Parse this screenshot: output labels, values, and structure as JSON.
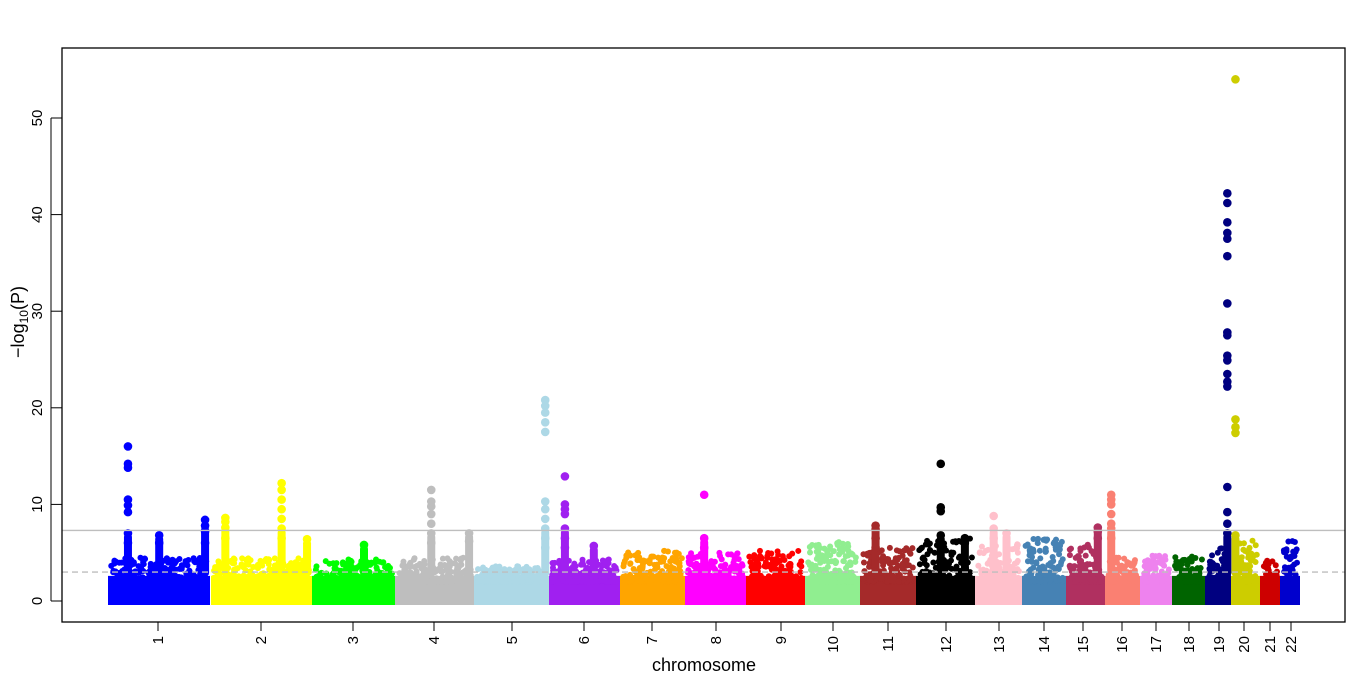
{
  "chart_data": {
    "type": "scatter",
    "title": "",
    "xlabel": "chromosome",
    "ylabel_parts": {
      "prefix": "−log",
      "sub": "10",
      "suffix": "(P)"
    },
    "ylim": [
      0,
      56
    ],
    "yticks": [
      "0",
      "10",
      "20",
      "30",
      "40",
      "50"
    ],
    "grid": false,
    "legend": "none",
    "threshold_lines": [
      {
        "value": 7.3,
        "style": "solid",
        "color": "#bebebe"
      },
      {
        "value": 3,
        "style": "dashed",
        "color": "#bebebe"
      }
    ],
    "chromosomes": [
      {
        "label": "1",
        "color": "#0000ff",
        "length_mb": 249,
        "background_max": 4.5
      },
      {
        "label": "2",
        "color": "#ffff00",
        "length_mb": 243,
        "background_max": 4.5
      },
      {
        "label": "3",
        "color": "#00ff00",
        "length_mb": 198,
        "background_max": 4.3
      },
      {
        "label": "4",
        "color": "#bebebe",
        "length_mb": 191,
        "background_max": 4.6
      },
      {
        "label": "5",
        "color": "#add8e6",
        "length_mb": 181,
        "background_max": 3.6
      },
      {
        "label": "6",
        "color": "#a020f0",
        "length_mb": 171,
        "background_max": 4.3
      },
      {
        "label": "7",
        "color": "#ffa500",
        "length_mb": 159,
        "background_max": 5.2
      },
      {
        "label": "8",
        "color": "#ff00ff",
        "length_mb": 146,
        "background_max": 5.0
      },
      {
        "label": "9",
        "color": "#ff0000",
        "length_mb": 141,
        "background_max": 5.2
      },
      {
        "label": "10",
        "color": "#90ee90",
        "length_mb": 136,
        "background_max": 6.2
      },
      {
        "label": "11",
        "color": "#a52a2a",
        "length_mb": 135,
        "background_max": 5.6
      },
      {
        "label": "12",
        "color": "#000000",
        "length_mb": 134,
        "background_max": 6.5
      },
      {
        "label": "13",
        "color": "#ffc0cb",
        "length_mb": 115,
        "background_max": 6.0
      },
      {
        "label": "14",
        "color": "#4682b4",
        "length_mb": 107,
        "background_max": 6.6
      },
      {
        "label": "15",
        "color": "#b03060",
        "length_mb": 102,
        "background_max": 5.9
      },
      {
        "label": "16",
        "color": "#fa8072",
        "length_mb": 90,
        "background_max": 4.5
      },
      {
        "label": "17",
        "color": "#ee82ee",
        "length_mb": 81,
        "background_max": 4.8
      },
      {
        "label": "18",
        "color": "#006400",
        "length_mb": 78,
        "background_max": 4.6
      },
      {
        "label": "19",
        "color": "#000080",
        "length_mb": 59,
        "background_max": 5.5
      },
      {
        "label": "20",
        "color": "#cdcd00",
        "length_mb": 63,
        "background_max": 6.5
      },
      {
        "label": "21",
        "color": "#cd0000",
        "length_mb": 48,
        "background_max": 4.2
      },
      {
        "label": "22",
        "color": "#0000cd",
        "length_mb": 51,
        "background_max": 6.8
      }
    ],
    "peaks": [
      {
        "chr": "1",
        "pos_mb": 44,
        "values": [
          16.0,
          14.2,
          13.8,
          10.5,
          9.9,
          9.2,
          7.0,
          6.0
        ]
      },
      {
        "chr": "1",
        "pos_mb": 125,
        "values": [
          6.8,
          6.0
        ]
      },
      {
        "chr": "1",
        "pos_mb": 244,
        "values": [
          8.4,
          7.8,
          7.2,
          6.0
        ]
      },
      {
        "chr": "2",
        "pos_mb": 29,
        "values": [
          8.6,
          8.2,
          7.6,
          6.5
        ]
      },
      {
        "chr": "2",
        "pos_mb": 173,
        "values": [
          12.2,
          11.5,
          10.5,
          9.5,
          8.5,
          7.5,
          6.5
        ]
      },
      {
        "chr": "2",
        "pos_mb": 238,
        "values": [
          6.4
        ]
      },
      {
        "chr": "3",
        "pos_mb": 126,
        "values": [
          5.8
        ]
      },
      {
        "chr": "4",
        "pos_mb": 87,
        "values": [
          11.5,
          10.3,
          9.8,
          9.0,
          8.0,
          7.0,
          6.0
        ]
      },
      {
        "chr": "4",
        "pos_mb": 186,
        "values": [
          7.0,
          6.2
        ]
      },
      {
        "chr": "5",
        "pos_mb": 179,
        "values": [
          20.8,
          20.2,
          19.5,
          18.5,
          17.5,
          10.3,
          9.5,
          8.5,
          7.5,
          6.5,
          5.5
        ]
      },
      {
        "chr": "6",
        "pos_mb": 34,
        "values": [
          12.9,
          10.0,
          9.5,
          9.0,
          7.5,
          6.5,
          5.5
        ]
      },
      {
        "chr": "6",
        "pos_mb": 110,
        "values": [
          5.7
        ]
      },
      {
        "chr": "8",
        "pos_mb": 43,
        "values": [
          11.0,
          6.5,
          5.5
        ]
      },
      {
        "chr": "11",
        "pos_mb": 34,
        "values": [
          7.8,
          7.4,
          6.5,
          5.5
        ]
      },
      {
        "chr": "12",
        "pos_mb": 55,
        "values": [
          14.2,
          9.7,
          9.3,
          6.8,
          5.5
        ]
      },
      {
        "chr": "12",
        "pos_mb": 116,
        "values": [
          6.5,
          6.0
        ]
      },
      {
        "chr": "13",
        "pos_mb": 44,
        "values": [
          8.8,
          7.5,
          6.5
        ]
      },
      {
        "chr": "13",
        "pos_mb": 80,
        "values": [
          7.0
        ]
      },
      {
        "chr": "15",
        "pos_mb": 89,
        "values": [
          7.6,
          7.2,
          6.5
        ]
      },
      {
        "chr": "16",
        "pos_mb": 10,
        "values": [
          11.0,
          10.5,
          10.0,
          9.0,
          8.0,
          7.5,
          6.5
        ]
      },
      {
        "chr": "19",
        "pos_mb": 57,
        "values": [
          42.2,
          41.2,
          39.2,
          38.1,
          37.5,
          35.7,
          30.8,
          27.8,
          27.5,
          25.4,
          24.9,
          23.5,
          22.7,
          22.2,
          11.8,
          9.2,
          8.0,
          7.0
        ]
      },
      {
        "chr": "20",
        "pos_mb": 4,
        "values": [
          54.0,
          18.8,
          18.0,
          17.4,
          6.8
        ]
      }
    ]
  }
}
